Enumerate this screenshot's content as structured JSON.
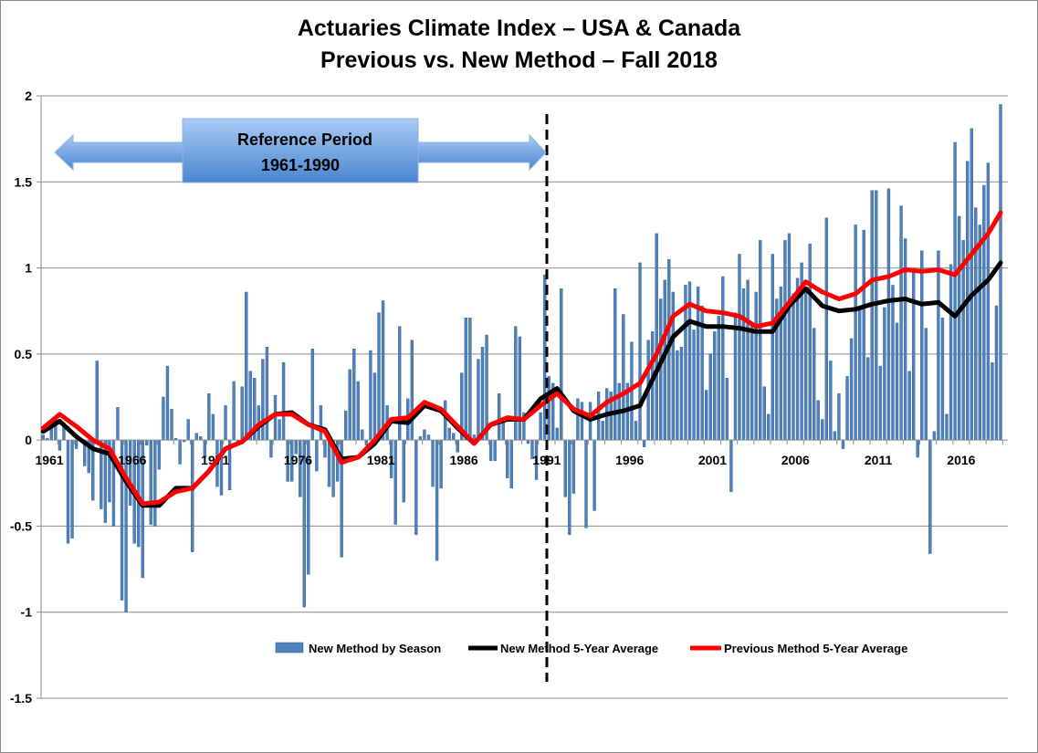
{
  "chart_data": {
    "type": "bar",
    "title": "Actuaries Climate Index – USA & Canada",
    "subtitle": "Previous vs. New Method – Fall 2018",
    "xlabel": "",
    "ylabel": "",
    "ylim": [
      -1.5,
      2
    ],
    "yticks": [
      "2",
      "1.5",
      "1",
      "0.5",
      "0",
      "-0.5",
      "-1",
      "-1.5"
    ],
    "ytick_values": [
      2,
      1.5,
      1,
      0.5,
      0,
      -0.5,
      -1,
      -1.5
    ],
    "xticks": [
      "1961",
      "1966",
      "1971",
      "1976",
      "1981",
      "1986",
      "1991",
      "1996",
      "2001",
      "2006",
      "2011",
      "2016"
    ],
    "xtick_values": [
      1961,
      1966,
      1971,
      1976,
      1981,
      1986,
      1991,
      1996,
      2001,
      2006,
      2011,
      2016
    ],
    "grid": true,
    "legend_position": "bottom-center",
    "annotation": {
      "line1": "Reference Period",
      "line2": "1961-1990",
      "divider_year": 1991
    },
    "colors": {
      "bars": "#4f81bd",
      "new_avg": "#000000",
      "prev_avg": "#ff0000",
      "arrow": "#6fa0dc"
    },
    "start_year": 1961,
    "series": [
      {
        "name": "New Method by Season",
        "type": "bar",
        "values": [
          0.03,
          0.01,
          0.1,
          0.12,
          -0.06,
          0.1,
          -0.6,
          -0.57,
          -0.05,
          0.0,
          -0.15,
          -0.19,
          -0.35,
          0.46,
          -0.4,
          -0.48,
          -0.36,
          -0.5,
          0.19,
          -0.93,
          -1.0,
          -0.38,
          -0.6,
          -0.62,
          -0.8,
          -0.03,
          -0.49,
          -0.5,
          -0.17,
          0.25,
          0.43,
          0.18,
          0.01,
          -0.14,
          -0.01,
          0.12,
          -0.65,
          0.04,
          0.02,
          -0.1,
          0.27,
          0.15,
          -0.27,
          -0.32,
          0.2,
          -0.29,
          0.34,
          -0.03,
          0.31,
          0.86,
          0.4,
          0.36,
          0.2,
          0.47,
          0.54,
          -0.1,
          0.26,
          0.12,
          0.45,
          -0.24,
          -0.24,
          -0.08,
          -0.33,
          -0.97,
          -0.78,
          0.53,
          -0.18,
          0.2,
          -0.1,
          -0.27,
          -0.33,
          -0.24,
          -0.68,
          0.17,
          0.41,
          0.53,
          0.34,
          0.06,
          -0.03,
          0.52,
          0.39,
          0.74,
          0.81,
          0.2,
          -0.22,
          -0.49,
          0.66,
          -0.36,
          0.24,
          0.58,
          -0.55,
          0.02,
          0.06,
          0.03,
          -0.27,
          -0.7,
          -0.28,
          0.23,
          0.07,
          0.04,
          -0.07,
          0.39,
          0.71,
          0.71,
          0.03,
          0.47,
          0.54,
          0.61,
          -0.12,
          -0.12,
          0.27,
          0.13,
          -0.22,
          -0.28,
          0.66,
          0.6,
          0.16,
          -0.02,
          -0.11,
          -0.23,
          0.16,
          0.96,
          0.37,
          0.33,
          0.07,
          0.88,
          -0.33,
          -0.55,
          -0.31,
          0.24,
          0.22,
          -0.51,
          0.22,
          -0.41,
          0.28,
          0.11,
          0.3,
          0.28,
          0.88,
          0.33,
          0.73,
          0.33,
          0.57,
          0.11,
          1.03,
          -0.04,
          0.58,
          0.63,
          1.2,
          0.82,
          0.93,
          1.05,
          0.86,
          0.52,
          0.54,
          0.9,
          0.92,
          0.64,
          0.89,
          0.78,
          0.29,
          0.5,
          0.63,
          0.72,
          0.95,
          0.36,
          -0.3,
          0.74,
          1.08,
          0.88,
          0.93,
          0.67,
          0.86,
          1.16,
          0.31,
          0.15,
          1.08,
          0.82,
          0.89,
          1.16,
          1.2,
          0.85,
          0.94,
          1.03,
          0.86,
          1.14,
          0.65,
          0.23,
          0.12,
          1.29,
          0.46,
          0.05,
          0.27,
          -0.05,
          0.37,
          0.59,
          1.25,
          0.76,
          1.22,
          0.48,
          1.45,
          1.45,
          0.43,
          0.77,
          1.46,
          0.9,
          0.68,
          1.36,
          1.17,
          0.4,
          0.98,
          -0.1,
          1.1,
          0.65,
          -0.66,
          0.05,
          1.1,
          0.71,
          0.15,
          1.02,
          1.73,
          1.3,
          1.16,
          1.62,
          1.81,
          1.35,
          1.25,
          1.48,
          1.61,
          0.45,
          0.78,
          1.95
        ]
      },
      {
        "name": "New Method 5-Year Average",
        "type": "line",
        "x": [
          1961,
          1962,
          1963,
          1964,
          1965,
          1966,
          1967,
          1968,
          1969,
          1970,
          1971,
          1972,
          1973,
          1974,
          1975,
          1976,
          1977,
          1978,
          1979,
          1980,
          1981,
          1982,
          1983,
          1984,
          1985,
          1986,
          1987,
          1988,
          1989,
          1990,
          1991,
          1992,
          1993,
          1994,
          1995,
          1996,
          1997,
          1998,
          1999,
          2000,
          2001,
          2002,
          2003,
          2004,
          2005,
          2006,
          2007,
          2008,
          2009,
          2010,
          2011,
          2012,
          2013,
          2014,
          2015,
          2016,
          2017,
          2018,
          2018.75
        ],
        "values": [
          0.05,
          0.11,
          0.02,
          -0.05,
          -0.08,
          -0.24,
          -0.38,
          -0.38,
          -0.28,
          -0.28,
          -0.18,
          -0.05,
          -0.01,
          0.08,
          0.15,
          0.16,
          0.09,
          0.06,
          -0.11,
          -0.1,
          -0.02,
          0.11,
          0.1,
          0.2,
          0.17,
          0.07,
          -0.02,
          0.09,
          0.12,
          0.12,
          0.24,
          0.3,
          0.17,
          0.12,
          0.15,
          0.17,
          0.2,
          0.4,
          0.6,
          0.69,
          0.66,
          0.66,
          0.65,
          0.63,
          0.63,
          0.78,
          0.88,
          0.78,
          0.75,
          0.76,
          0.79,
          0.81,
          0.82,
          0.79,
          0.8,
          0.72,
          0.84,
          0.93,
          1.03
        ]
      },
      {
        "name": "Previous Method 5-Year Average",
        "type": "line",
        "x": [
          1961,
          1962,
          1963,
          1964,
          1965,
          1966,
          1967,
          1968,
          1969,
          1970,
          1971,
          1972,
          1973,
          1974,
          1975,
          1976,
          1977,
          1978,
          1979,
          1980,
          1981,
          1982,
          1983,
          1984,
          1985,
          1986,
          1987,
          1988,
          1989,
          1990,
          1991,
          1992,
          1993,
          1994,
          1995,
          1996,
          1997,
          1998,
          1999,
          2000,
          2001,
          2002,
          2003,
          2004,
          2005,
          2006,
          2007,
          2008,
          2009,
          2010,
          2011,
          2012,
          2013,
          2014,
          2015,
          2016,
          2017,
          2018,
          2018.75
        ],
        "values": [
          0.07,
          0.15,
          0.08,
          0.0,
          -0.05,
          -0.22,
          -0.37,
          -0.36,
          -0.3,
          -0.28,
          -0.18,
          -0.05,
          -0.01,
          0.09,
          0.15,
          0.15,
          0.09,
          0.05,
          -0.13,
          -0.1,
          0.0,
          0.12,
          0.13,
          0.22,
          0.18,
          0.08,
          -0.02,
          0.09,
          0.13,
          0.12,
          0.2,
          0.27,
          0.18,
          0.14,
          0.22,
          0.27,
          0.33,
          0.5,
          0.72,
          0.79,
          0.75,
          0.74,
          0.72,
          0.66,
          0.68,
          0.8,
          0.92,
          0.86,
          0.82,
          0.85,
          0.93,
          0.95,
          0.99,
          0.98,
          0.99,
          0.96,
          1.08,
          1.2,
          1.32
        ]
      }
    ]
  }
}
